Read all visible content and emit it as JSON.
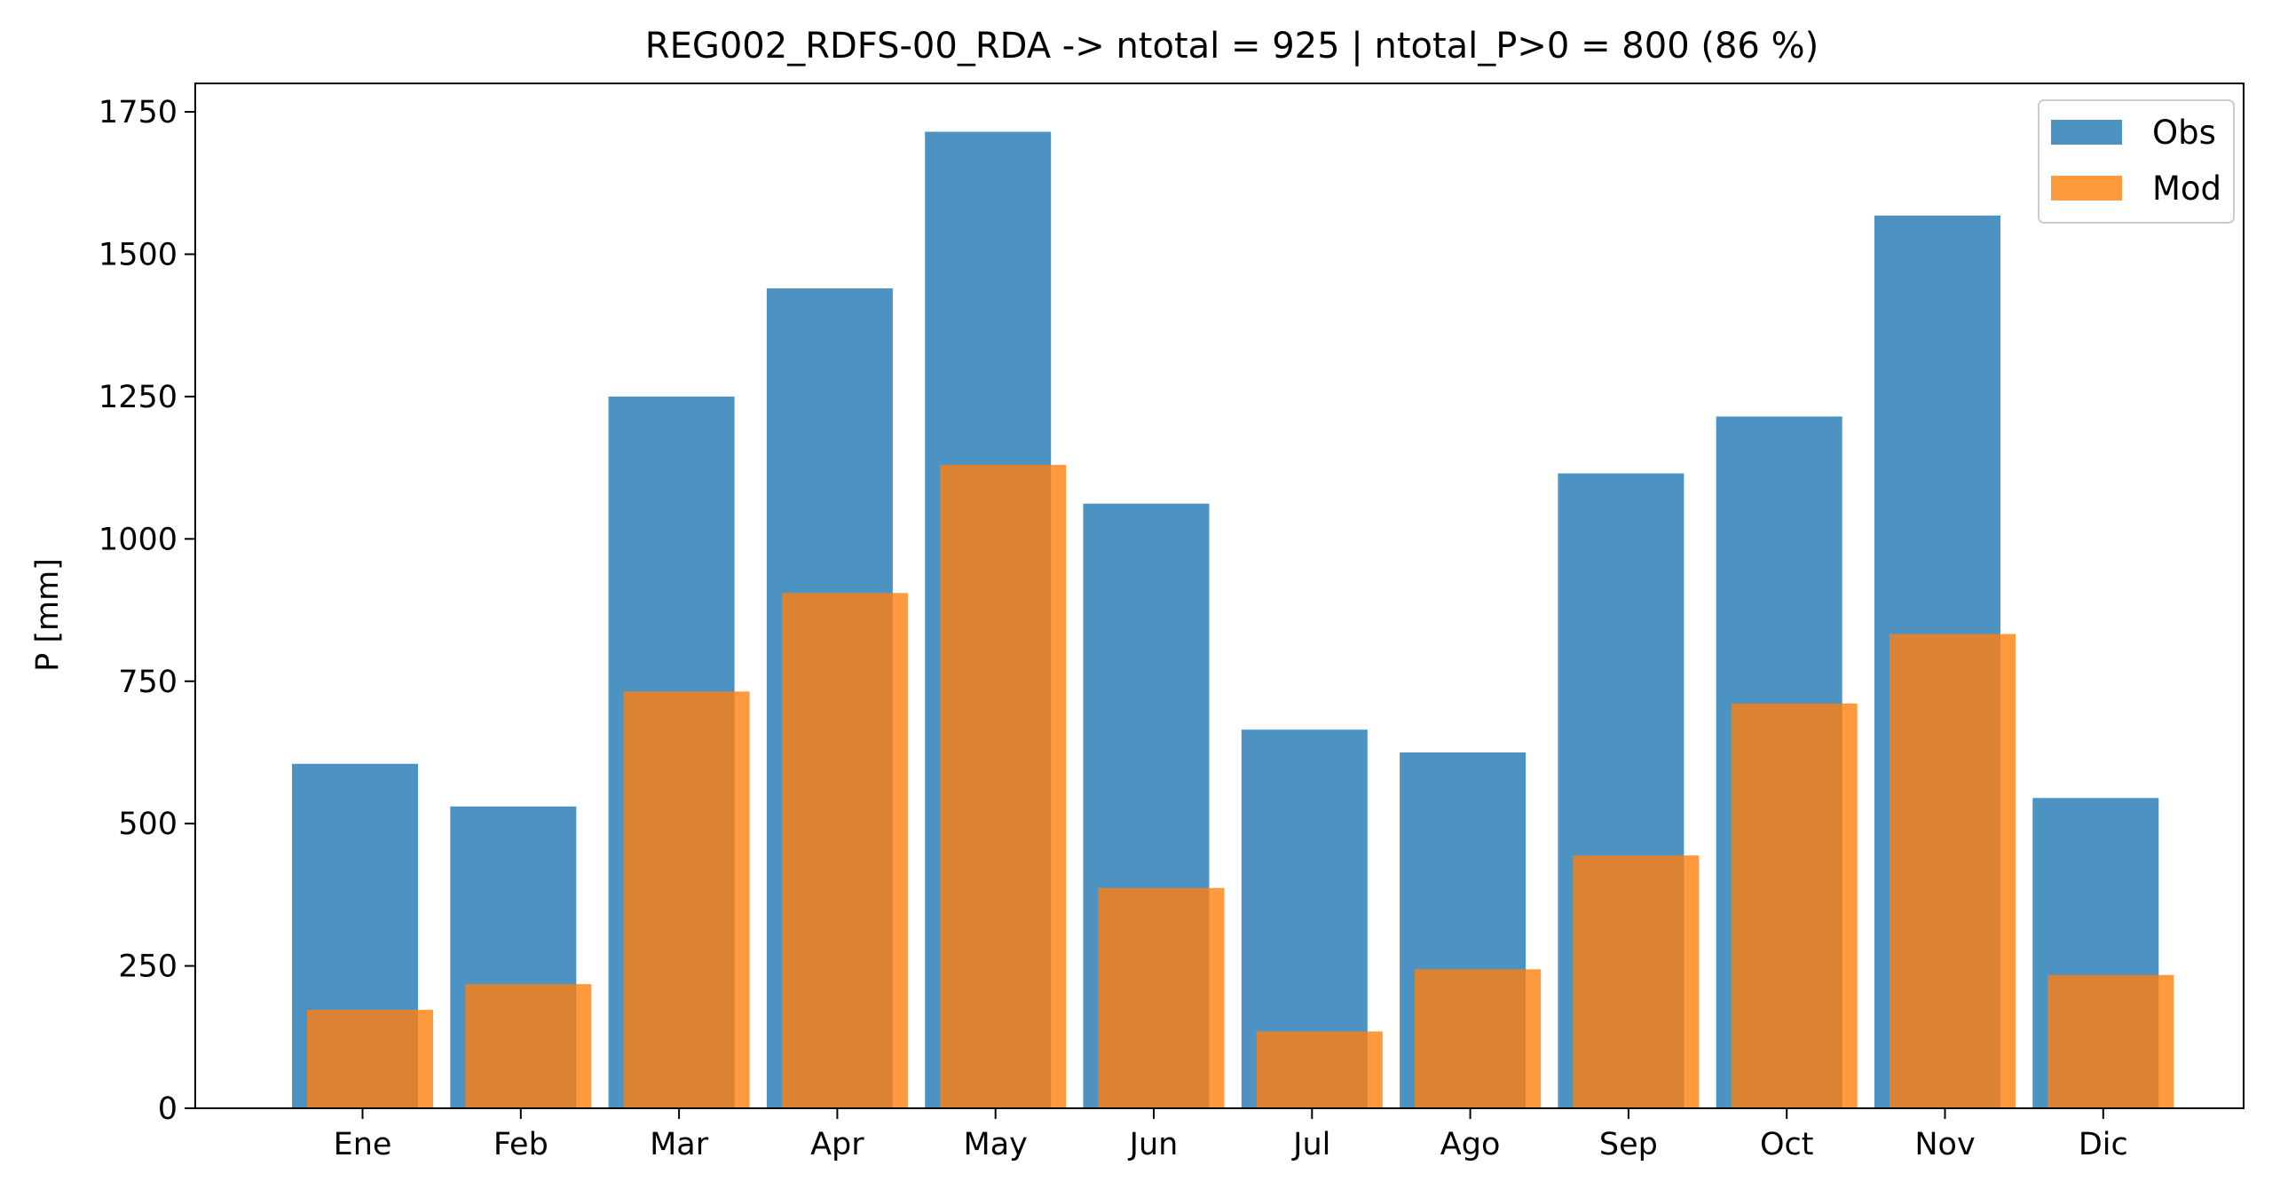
{
  "chart_data": {
    "type": "bar",
    "title": "REG002_RDFS-00_RDA -> ntotal = 925 | ntotal_P>0 = 800 (86 %)",
    "xlabel": "",
    "ylabel": "P [mm]",
    "categories": [
      "Ene",
      "Feb",
      "Mar",
      "Apr",
      "May",
      "Jun",
      "Jul",
      "Ago",
      "Sep",
      "Oct",
      "Nov",
      "Dic"
    ],
    "series": [
      {
        "name": "Obs",
        "color": "#1f77b4",
        "opacity": 0.8,
        "values": [
          605,
          530,
          1250,
          1440,
          1715,
          1062,
          665,
          625,
          1115,
          1215,
          1568,
          545
        ]
      },
      {
        "name": "Mod",
        "color": "#ff7f0e",
        "opacity": 0.8,
        "values": [
          173,
          218,
          732,
          905,
          1130,
          387,
          135,
          244,
          444,
          711,
          833,
          234
        ]
      }
    ],
    "ylim": [
      0,
      1800
    ],
    "yticks": [
      0,
      250,
      500,
      750,
      1000,
      1250,
      1500,
      1750
    ],
    "grid": false,
    "legend": {
      "placement": "top-right",
      "entries": [
        "Obs",
        "Mod"
      ]
    }
  }
}
